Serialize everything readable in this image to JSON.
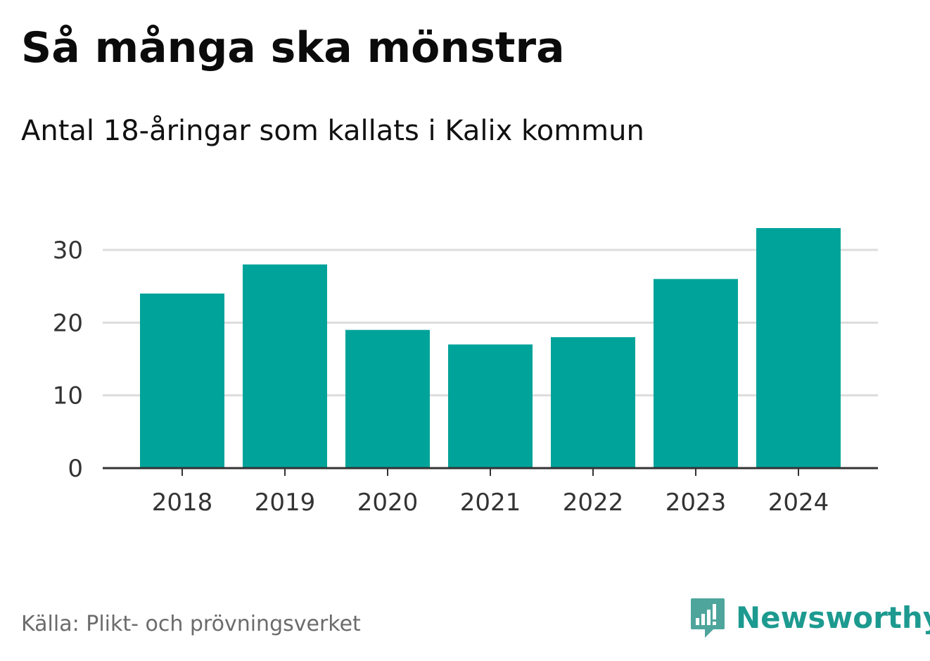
{
  "header": {
    "title": "Så många ska mönstra",
    "subtitle": "Antal 18-åringar som kallats i Kalix kommun"
  },
  "footer": {
    "source": "Källa: Plikt- och prövningsverket",
    "brand": "Newsworthy",
    "brand_icon": "newsworthy-logo-icon"
  },
  "colors": {
    "bar": "#00a39a",
    "grid": "#dcdcdc",
    "axis": "#333333",
    "tick_label": "#333333",
    "brand": "#1d9a90"
  },
  "chart_data": {
    "type": "bar",
    "title": "Så många ska mönstra",
    "subtitle": "Antal 18-åringar som kallats i Kalix kommun",
    "xlabel": "",
    "ylabel": "",
    "categories": [
      "2018",
      "2019",
      "2020",
      "2021",
      "2022",
      "2023",
      "2024"
    ],
    "values": [
      24,
      28,
      19,
      17,
      18,
      26,
      33
    ],
    "ylim": [
      0,
      33
    ],
    "yticks": [
      0,
      10,
      20,
      30
    ],
    "grid": true,
    "legend": "none"
  }
}
